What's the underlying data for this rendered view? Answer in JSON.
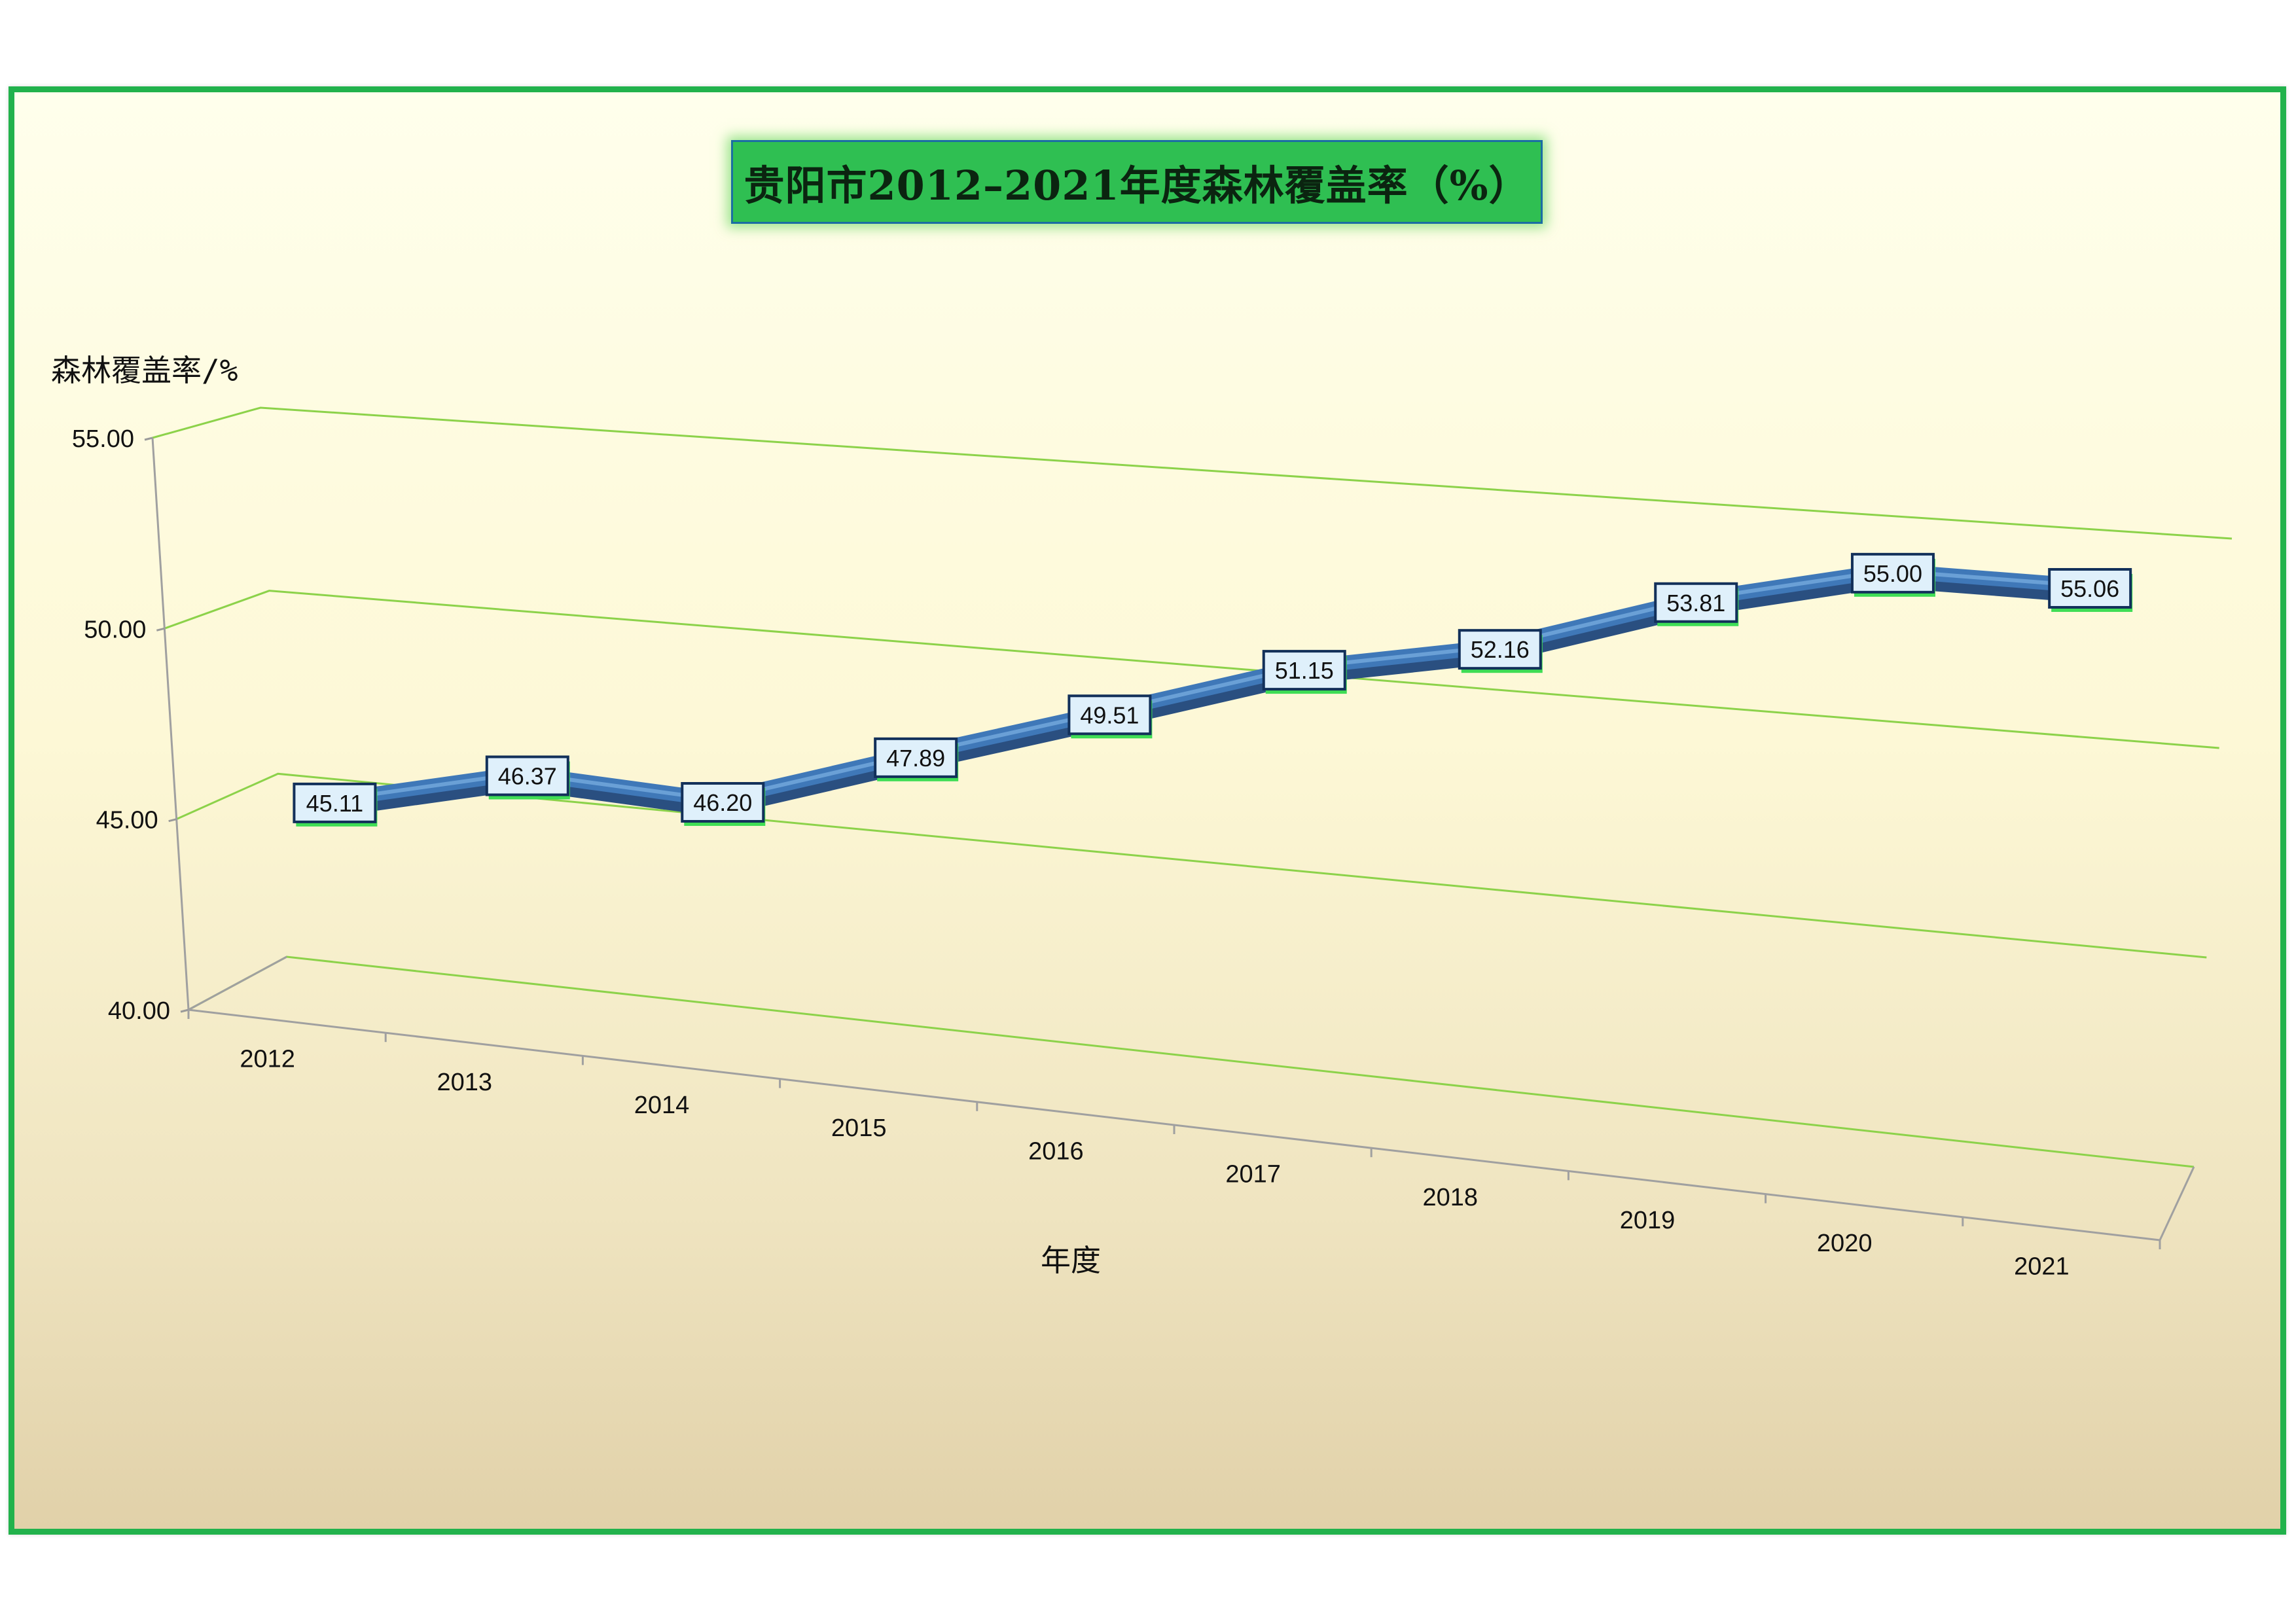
{
  "chart_data": {
    "type": "line",
    "title": "贵阳市2012–2021年度森林覆盖率（%）",
    "xlabel": "年度",
    "ylabel": "森林覆盖率/%",
    "categories": [
      "2012",
      "2013",
      "2014",
      "2015",
      "2016",
      "2017",
      "2018",
      "2019",
      "2020",
      "2021"
    ],
    "values": [
      45.11,
      46.37,
      46.2,
      47.89,
      49.51,
      51.15,
      52.16,
      53.81,
      55.0,
      55.06
    ],
    "value_labels": [
      "45.11",
      "46.37",
      "46.20",
      "47.89",
      "49.51",
      "51.15",
      "52.16",
      "53.81",
      "55.00",
      "55.06"
    ],
    "y_ticks": [
      "40.00",
      "45.00",
      "50.00",
      "55.00"
    ],
    "ylim": [
      40,
      55
    ],
    "grid": true,
    "perspective": "3d",
    "colors": {
      "frame_border": "#22b24c",
      "gridline": "#8cd24a",
      "line": "#3f78b8",
      "line_top": "#6aa0d6",
      "label_fill": "#dff0fb",
      "label_border": "#12305a",
      "label_shadow": "#3fdd55",
      "title_fill": "#2fbf52"
    }
  }
}
